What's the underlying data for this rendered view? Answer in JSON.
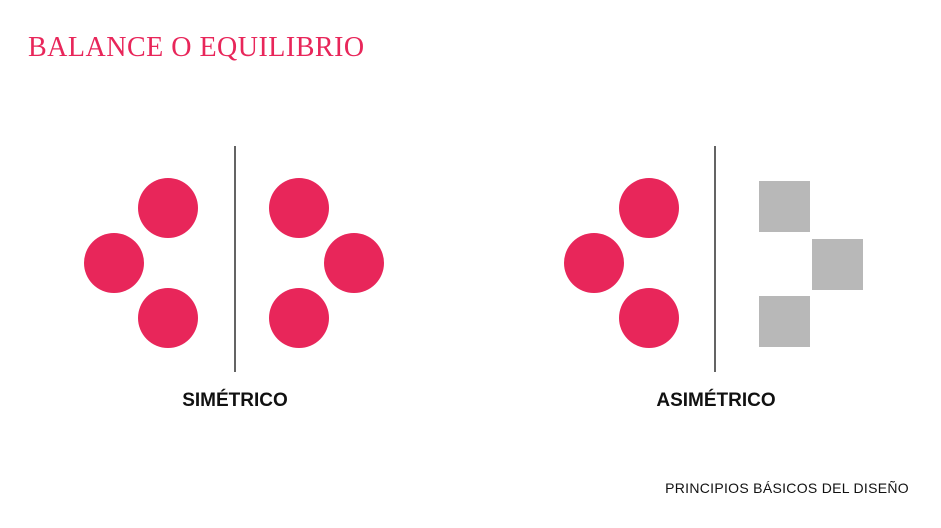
{
  "title": "BALANCE O EQUILIBRIO",
  "symmetric_label": "SIMÉTRICO",
  "asymmetric_label": "ASIMÉTRICO",
  "footer": "PRINCIPIOS BÁSICOS DEL DISEÑO",
  "colors": {
    "accent": "#E8265A",
    "square": "#B8B8B8",
    "line": "#111111"
  }
}
